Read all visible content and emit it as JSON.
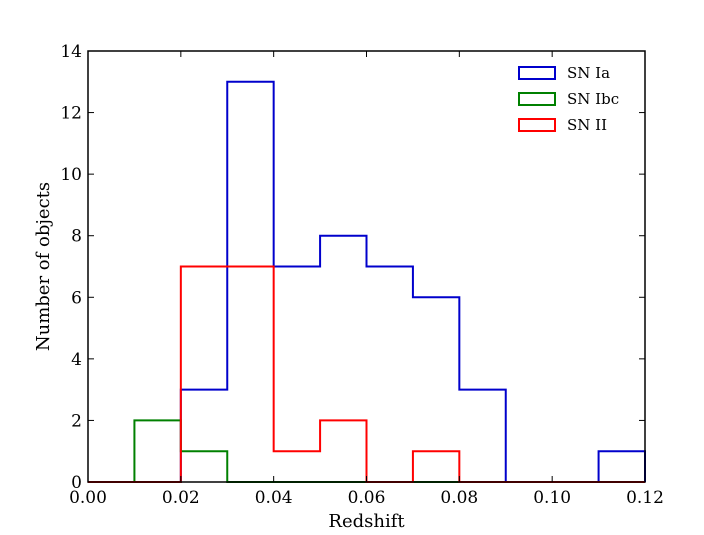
{
  "chart_data": {
    "type": "histogram",
    "xlabel": "Redshift",
    "ylabel": "Number of objects",
    "xlim": [
      0.0,
      0.12
    ],
    "ylim": [
      0,
      14
    ],
    "xticks": [
      "0.00",
      "0.02",
      "0.04",
      "0.06",
      "0.08",
      "0.10",
      "0.12"
    ],
    "yticks": [
      "0",
      "2",
      "4",
      "6",
      "8",
      "10",
      "12",
      "14"
    ],
    "grid": false,
    "legend_position": "top-right",
    "bin_edges": [
      0.0,
      0.01,
      0.02,
      0.03,
      0.04,
      0.05,
      0.06,
      0.07,
      0.08,
      0.09,
      0.1,
      0.11,
      0.12
    ],
    "series": [
      {
        "name": "SN Ia",
        "color": "#0000cc",
        "counts": [
          0,
          0,
          3,
          13,
          7,
          8,
          7,
          6,
          3,
          0,
          0,
          1
        ]
      },
      {
        "name": "SN Ibc",
        "color": "#008000",
        "counts": [
          0,
          2,
          1,
          0,
          0,
          0,
          0,
          0,
          0,
          0,
          0,
          0
        ]
      },
      {
        "name": "SN II",
        "color": "#ff0000",
        "counts": [
          0,
          0,
          7,
          7,
          1,
          2,
          0,
          1,
          0,
          0,
          0,
          0
        ]
      }
    ]
  }
}
